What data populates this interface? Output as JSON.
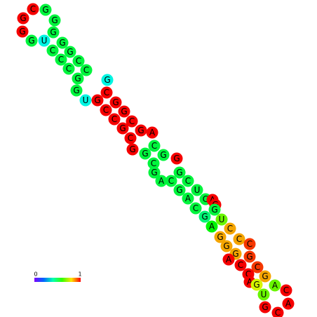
{
  "nodes": [
    {
      "label": "C",
      "value": 1
    },
    {
      "label": "G",
      "value": 0.5
    },
    {
      "label": "G",
      "value": 0.5
    },
    {
      "label": "G",
      "value": 1
    },
    {
      "label": "G",
      "value": 1
    },
    {
      "label": "G",
      "value": 0.5
    },
    {
      "label": "U",
      "value": 0.35
    },
    {
      "label": "G",
      "value": 0.5
    },
    {
      "label": "G",
      "value": 0.5
    },
    {
      "label": "C",
      "value": 0.5
    },
    {
      "label": "G",
      "value": 0.5
    },
    {
      "label": "C",
      "value": 0.5
    },
    {
      "label": "C",
      "value": 0.5
    },
    {
      "label": "C",
      "value": 0.5
    },
    {
      "label": "C",
      "value": 0.5
    },
    {
      "label": "G",
      "value": 0.5
    },
    {
      "label": "G",
      "value": 0.5
    },
    {
      "label": "U",
      "value": 0.35
    },
    {
      "label": "G",
      "value": 1
    },
    {
      "label": "G",
      "value": 0.35
    },
    {
      "label": "C",
      "value": 1
    },
    {
      "label": "G",
      "value": 1
    },
    {
      "label": "C",
      "value": 1
    },
    {
      "label": "G",
      "value": 1
    },
    {
      "label": "C",
      "value": 1
    },
    {
      "label": "C",
      "value": 1
    },
    {
      "label": "G",
      "value": 1
    },
    {
      "label": "G",
      "value": 1
    },
    {
      "label": "C",
      "value": 1
    },
    {
      "label": "A",
      "value": 1
    },
    {
      "label": "G",
      "value": 1
    },
    {
      "label": "C",
      "value": 0.5
    },
    {
      "label": "G",
      "value": 0.5
    },
    {
      "label": "G",
      "value": 0.5
    },
    {
      "label": "C",
      "value": 0.5
    },
    {
      "label": "G",
      "value": 1
    },
    {
      "label": "G",
      "value": 0.5
    },
    {
      "label": "A",
      "value": 0.5
    },
    {
      "label": "C",
      "value": 0.5
    },
    {
      "label": "G",
      "value": 0.5
    },
    {
      "label": "C",
      "value": 0.5
    },
    {
      "label": "G",
      "value": 0.5
    },
    {
      "label": "U",
      "value": 0.5
    },
    {
      "label": "A",
      "value": 0.5
    },
    {
      "label": "C",
      "value": 0.5
    },
    {
      "label": "C",
      "value": 0.5
    },
    {
      "label": "A",
      "value": 1
    },
    {
      "label": "G",
      "value": 1
    },
    {
      "label": "G",
      "value": 0.5
    },
    {
      "label": "G",
      "value": 0.45
    },
    {
      "label": "U",
      "value": 0.65
    },
    {
      "label": "A",
      "value": 0.55
    },
    {
      "label": "C",
      "value": 0.85
    },
    {
      "label": "G",
      "value": 0.85
    },
    {
      "label": "C",
      "value": 0.85
    },
    {
      "label": "G",
      "value": 0.85
    },
    {
      "label": "C",
      "value": 0.95
    },
    {
      "label": "G",
      "value": 0.85
    },
    {
      "label": "A",
      "value": 1
    },
    {
      "label": "G",
      "value": 0.95
    },
    {
      "label": "C",
      "value": 1
    },
    {
      "label": "C",
      "value": 0.95
    },
    {
      "label": "C",
      "value": 1
    },
    {
      "label": "G",
      "value": 0.85
    },
    {
      "label": "A",
      "value": 1
    },
    {
      "label": "G",
      "value": 0.75
    },
    {
      "label": "A",
      "value": 0.65
    },
    {
      "label": "U",
      "value": 0.65
    },
    {
      "label": "C",
      "value": 1
    },
    {
      "label": "A",
      "value": 1
    },
    {
      "label": "C",
      "value": 1
    },
    {
      "label": "G",
      "value": 1
    }
  ],
  "colorbar": {
    "min": 0,
    "max": 1
  }
}
